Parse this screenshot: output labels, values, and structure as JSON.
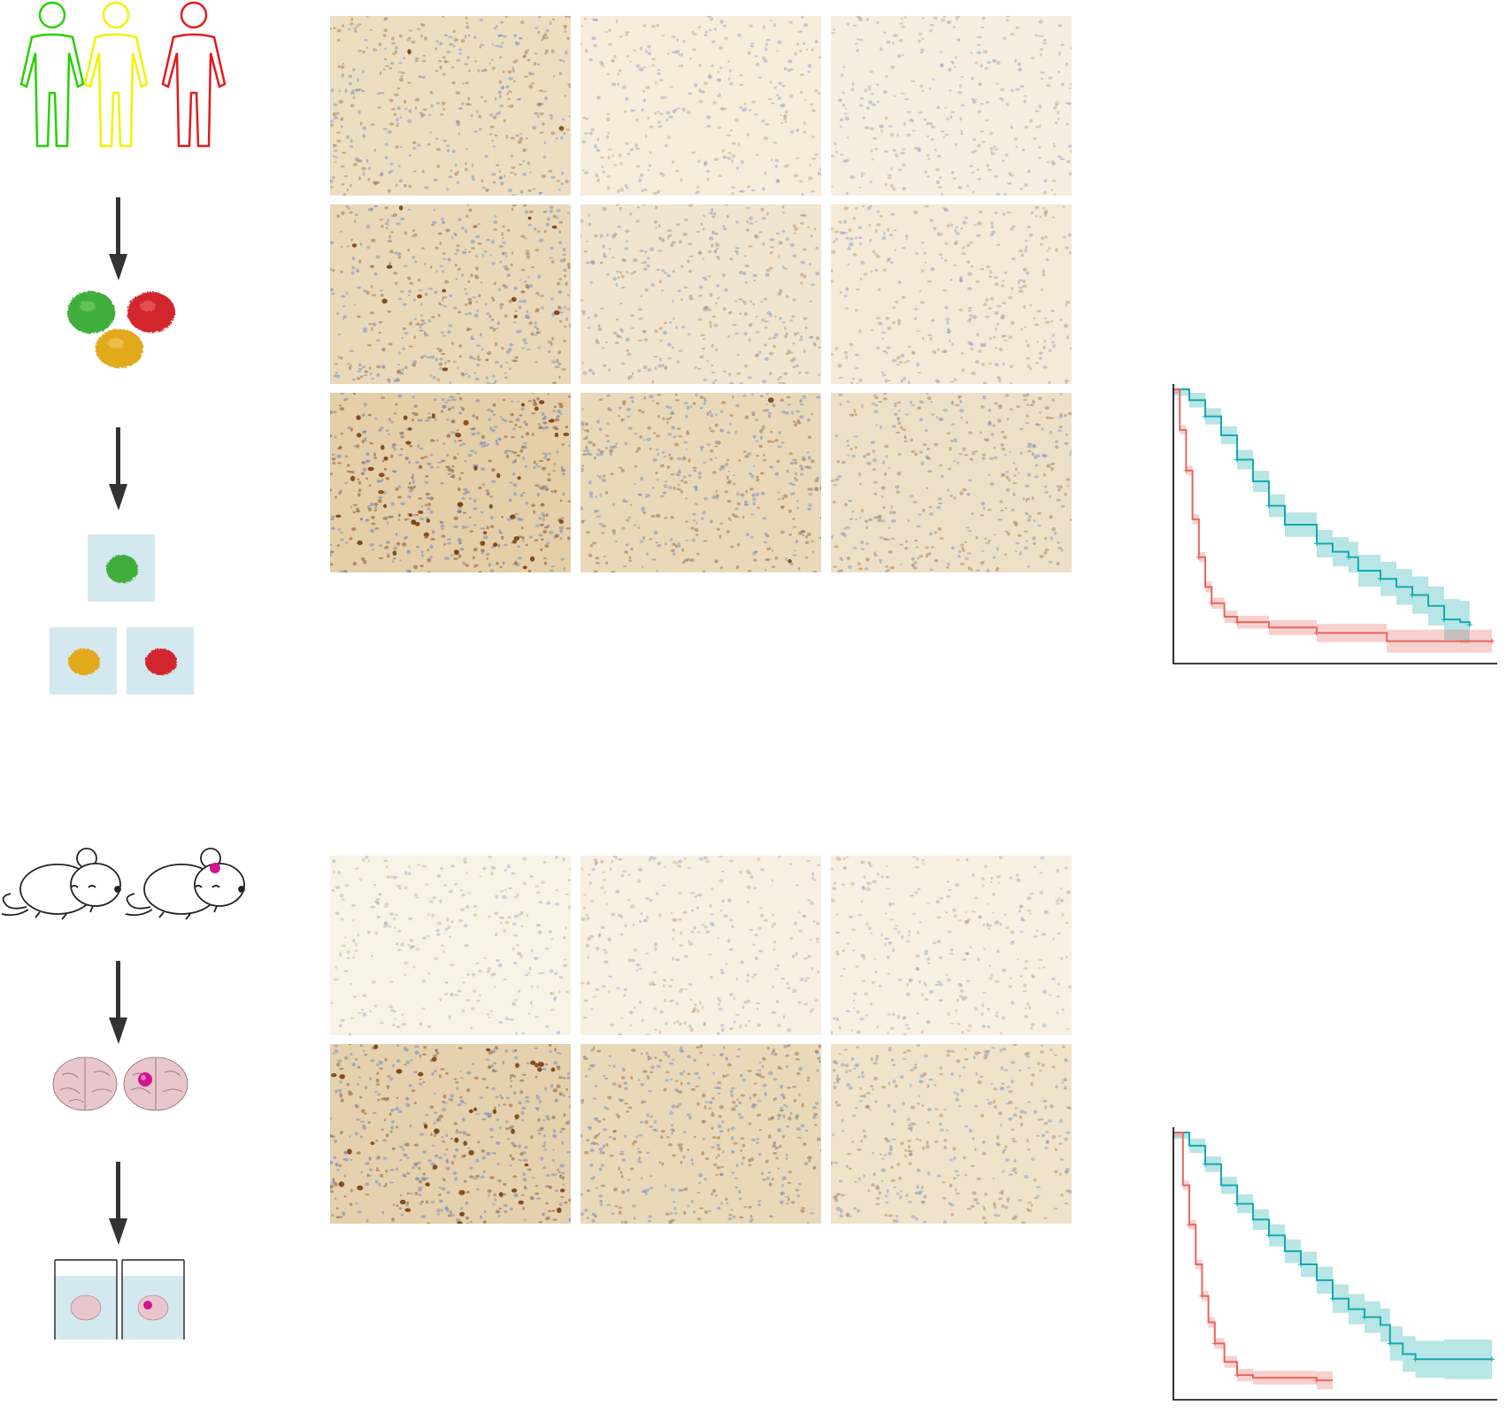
{
  "colors": {
    "human_green": "#27d100",
    "human_yellow": "#f2f200",
    "human_red": "#e31a1c",
    "organoid_green": "#3fae3a",
    "organoid_red": "#d2262d",
    "organoid_yellow": "#e2a91b",
    "dish_blue": "#d4e8f0",
    "km_high": "#14aaad",
    "km_low": "#e8665f",
    "brain_tissue": "#e9c5cc",
    "tumor_magenta": "#d0158f",
    "arrow": "#333333"
  },
  "panels": {
    "top": {
      "workflow_icons": [
        "person-green-icon",
        "person-yellow-icon",
        "person-red-icon",
        "arrow-down-icon",
        "organoid-cluster-icon",
        "arrow-down-icon",
        "organoid-dishes-icon"
      ],
      "ihc_grid": {
        "rows": 3,
        "cols": 3,
        "stain_intensity": [
          [
            0.45,
            0.15,
            0.12
          ],
          [
            0.55,
            0.3,
            0.2
          ],
          [
            0.75,
            0.55,
            0.4
          ]
        ],
        "dark_nuclei": [
          [
            2,
            0,
            0
          ],
          [
            12,
            0,
            0
          ],
          [
            45,
            2,
            0
          ]
        ]
      },
      "km_curves": [
        {
          "color_key": "km_high",
          "points": [
            [
              0,
              1.0
            ],
            [
              0.05,
              0.96
            ],
            [
              0.1,
              0.9
            ],
            [
              0.15,
              0.83
            ],
            [
              0.2,
              0.74
            ],
            [
              0.25,
              0.66
            ],
            [
              0.3,
              0.57
            ],
            [
              0.35,
              0.5
            ],
            [
              0.45,
              0.43
            ],
            [
              0.5,
              0.4
            ],
            [
              0.55,
              0.38
            ],
            [
              0.58,
              0.33
            ],
            [
              0.65,
              0.3
            ],
            [
              0.7,
              0.27
            ],
            [
              0.75,
              0.24
            ],
            [
              0.8,
              0.2
            ],
            [
              0.85,
              0.15
            ],
            [
              0.9,
              0.14
            ],
            [
              0.93,
              0.13
            ]
          ],
          "ci": 0.06
        },
        {
          "color_key": "km_low",
          "points": [
            [
              0,
              1.0
            ],
            [
              0.02,
              0.85
            ],
            [
              0.04,
              0.7
            ],
            [
              0.06,
              0.52
            ],
            [
              0.08,
              0.38
            ],
            [
              0.1,
              0.27
            ],
            [
              0.12,
              0.21
            ],
            [
              0.16,
              0.16
            ],
            [
              0.2,
              0.14
            ],
            [
              0.3,
              0.12
            ],
            [
              0.45,
              0.1
            ],
            [
              0.67,
              0.07
            ],
            [
              1.0,
              0.07
            ]
          ],
          "ci": 0.04
        }
      ]
    },
    "bottom": {
      "workflow_icons": [
        "mouse-icon",
        "mouse-tumor-icon",
        "arrow-down-icon",
        "brain-pair-icon",
        "arrow-down-icon",
        "brain-sections-icon"
      ],
      "ihc_grid": {
        "rows": 2,
        "cols": 3,
        "stain_intensity": [
          [
            0.03,
            0.08,
            0.08
          ],
          [
            0.7,
            0.55,
            0.35
          ]
        ],
        "dark_nuclei": [
          [
            0,
            0,
            0
          ],
          [
            40,
            0,
            0
          ]
        ]
      },
      "km_curves": [
        {
          "color_key": "km_high",
          "points": [
            [
              0,
              1.0
            ],
            [
              0.05,
              0.95
            ],
            [
              0.1,
              0.88
            ],
            [
              0.15,
              0.8
            ],
            [
              0.2,
              0.73
            ],
            [
              0.25,
              0.67
            ],
            [
              0.3,
              0.61
            ],
            [
              0.35,
              0.55
            ],
            [
              0.4,
              0.5
            ],
            [
              0.45,
              0.44
            ],
            [
              0.5,
              0.37
            ],
            [
              0.55,
              0.33
            ],
            [
              0.6,
              0.3
            ],
            [
              0.65,
              0.27
            ],
            [
              0.68,
              0.2
            ],
            [
              0.72,
              0.16
            ],
            [
              0.76,
              0.14
            ],
            [
              0.85,
              0.14
            ],
            [
              1.0,
              0.14
            ]
          ],
          "ci": 0.06
        },
        {
          "color_key": "km_low",
          "points": [
            [
              0,
              1.0
            ],
            [
              0.03,
              0.8
            ],
            [
              0.05,
              0.65
            ],
            [
              0.07,
              0.5
            ],
            [
              0.09,
              0.38
            ],
            [
              0.11,
              0.28
            ],
            [
              0.13,
              0.2
            ],
            [
              0.16,
              0.13
            ],
            [
              0.2,
              0.08
            ],
            [
              0.25,
              0.07
            ],
            [
              0.45,
              0.06
            ],
            [
              0.5,
              0.06
            ]
          ],
          "ci": 0.04
        }
      ]
    }
  }
}
